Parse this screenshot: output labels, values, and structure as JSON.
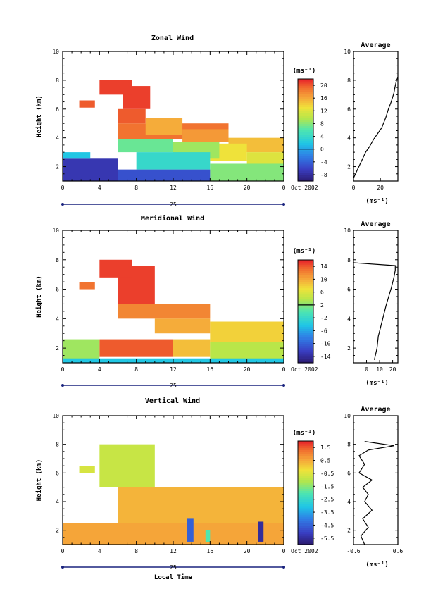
{
  "chart_data": [
    {
      "type": "heatmap",
      "title": "Zonal Wind",
      "xlabel": "",
      "ylabel": "Height (km)",
      "xlim": [
        0,
        24
      ],
      "ylim": [
        1,
        10
      ],
      "xticks": [
        "0",
        "4",
        "8",
        "12",
        "16",
        "20",
        "0"
      ],
      "yticks": [
        "2",
        "4",
        "6",
        "8",
        "10"
      ],
      "date_day": "25",
      "date_label": "Oct 2002",
      "colorbar": {
        "unit": "(ms⁻¹)",
        "ticks": [
          "-8",
          "-4",
          "0",
          "4",
          "8",
          "12",
          "16",
          "20"
        ],
        "min": -10,
        "max": 22,
        "contour_at": 0
      },
      "field": {
        "blocks": [
          {
            "x": [
              6,
              18
            ],
            "y": [
              3.9,
              5.0
            ],
            "value": 19
          },
          {
            "x": [
              6,
              9
            ],
            "y": [
              5.0,
              6.0
            ],
            "value": 20
          },
          {
            "x": [
              6.5,
              9.5
            ],
            "y": [
              6.0,
              7.6
            ],
            "value": 21
          },
          {
            "x": [
              1.8,
              3.5
            ],
            "y": [
              6.1,
              6.6
            ],
            "value": 20
          },
          {
            "x": [
              4,
              7.5
            ],
            "y": [
              7.0,
              8.0
            ],
            "value": 21
          },
          {
            "x": [
              9,
              13
            ],
            "y": [
              4.2,
              5.4
            ],
            "value": 16
          },
          {
            "x": [
              13,
              18
            ],
            "y": [
              3.7,
              4.6
            ],
            "value": 17
          },
          {
            "x": [
              18,
              24
            ],
            "y": [
              3.0,
              4.0
            ],
            "value": 15
          },
          {
            "x": [
              20,
              24
            ],
            "y": [
              2.0,
              3.0
            ],
            "value": 12
          },
          {
            "x": [
              16,
              20
            ],
            "y": [
              2.4,
              3.6
            ],
            "value": 13
          },
          {
            "x": [
              6,
              12
            ],
            "y": [
              3.0,
              3.9
            ],
            "value": 7
          },
          {
            "x": [
              12,
              17
            ],
            "y": [
              2.6,
              3.7
            ],
            "value": 9
          },
          {
            "x": [
              8,
              16
            ],
            "y": [
              1.8,
              3.0
            ],
            "value": 4
          },
          {
            "x": [
              16,
              24
            ],
            "y": [
              1.0,
              2.2
            ],
            "value": 8
          },
          {
            "x": [
              6,
              16
            ],
            "y": [
              1.0,
              1.8
            ],
            "value": -5
          },
          {
            "x": [
              0,
              6
            ],
            "y": [
              1.0,
              2.6
            ],
            "value": -7
          },
          {
            "x": [
              0,
              3
            ],
            "y": [
              2.6,
              3.0
            ],
            "value": 2
          }
        ]
      },
      "average_profile": {
        "title": "Average",
        "xlabel": "(ms⁻¹)",
        "xlim": [
          0,
          33
        ],
        "xticks": [
          "0",
          "20"
        ],
        "yticks": [
          "2",
          "4",
          "6",
          "8",
          "10"
        ],
        "ylim": [
          1,
          10
        ],
        "points": [
          [
            0,
            1.2
          ],
          [
            3,
            1.8
          ],
          [
            6,
            2.4
          ],
          [
            9,
            3.0
          ],
          [
            12,
            3.4
          ],
          [
            15,
            3.9
          ],
          [
            18,
            4.3
          ],
          [
            21,
            4.7
          ],
          [
            24,
            5.4
          ],
          [
            26,
            6.0
          ],
          [
            28,
            6.5
          ],
          [
            30,
            7.1
          ],
          [
            31,
            7.6
          ],
          [
            32,
            8.0
          ],
          [
            33,
            8.2
          ]
        ]
      }
    },
    {
      "type": "heatmap",
      "title": "Meridional Wind",
      "xlabel": "",
      "ylabel": "Height (km)",
      "xlim": [
        0,
        24
      ],
      "ylim": [
        1,
        10
      ],
      "xticks": [
        "0",
        "4",
        "8",
        "12",
        "16",
        "20",
        "0"
      ],
      "yticks": [
        "2",
        "4",
        "6",
        "8",
        "10"
      ],
      "date_day": "25",
      "date_label": "Oct 2002",
      "colorbar": {
        "unit": "(ms⁻¹)",
        "ticks": [
          "-14",
          "-10",
          "-6",
          "-2",
          "2",
          "6",
          "10",
          "14"
        ],
        "min": -16,
        "max": 16,
        "contour_at": 2
      },
      "field": {
        "blocks": [
          {
            "x": [
              6,
              10
            ],
            "y": [
              5.0,
              7.6
            ],
            "value": 15
          },
          {
            "x": [
              4,
              7.5
            ],
            "y": [
              6.8,
              8.0
            ],
            "value": 15
          },
          {
            "x": [
              1.8,
              3.5
            ],
            "y": [
              6.0,
              6.5
            ],
            "value": 13
          },
          {
            "x": [
              6,
              16
            ],
            "y": [
              4.0,
              5.0
            ],
            "value": 12
          },
          {
            "x": [
              10,
              16
            ],
            "y": [
              3.0,
              4.0
            ],
            "value": 10
          },
          {
            "x": [
              16,
              24
            ],
            "y": [
              2.4,
              3.8
            ],
            "value": 8
          },
          {
            "x": [
              4,
              12
            ],
            "y": [
              1.4,
              2.6
            ],
            "value": 14
          },
          {
            "x": [
              12,
              16
            ],
            "y": [
              1.4,
              2.6
            ],
            "value": 9
          },
          {
            "x": [
              16,
              24
            ],
            "y": [
              1.0,
              2.4
            ],
            "value": 4
          },
          {
            "x": [
              0,
              4
            ],
            "y": [
              1.0,
              2.6
            ],
            "value": 3
          },
          {
            "x": [
              0,
              24
            ],
            "y": [
              0.9,
              1.3
            ],
            "value": -4
          }
        ]
      },
      "average_profile": {
        "title": "Average",
        "xlabel": "(ms⁻¹)",
        "xlim": [
          -10,
          24
        ],
        "xticks": [
          "0",
          "10",
          "20"
        ],
        "yticks": [
          "2",
          "4",
          "6",
          "8",
          "10"
        ],
        "ylim": [
          1,
          10
        ],
        "points": [
          [
            6,
            1.2
          ],
          [
            8,
            2.0
          ],
          [
            9,
            2.8
          ],
          [
            11,
            3.5
          ],
          [
            13,
            4.2
          ],
          [
            15,
            4.9
          ],
          [
            17,
            5.5
          ],
          [
            19,
            6.1
          ],
          [
            21,
            6.8
          ],
          [
            22,
            7.3
          ],
          [
            22,
            7.6
          ],
          [
            -10,
            7.8
          ]
        ]
      }
    },
    {
      "type": "heatmap",
      "title": "Vertical Wind",
      "xlabel": "Local Time",
      "ylabel": "Height (km)",
      "xlim": [
        0,
        24
      ],
      "ylim": [
        1,
        10
      ],
      "xticks": [
        "0",
        "4",
        "8",
        "12",
        "16",
        "20",
        "0"
      ],
      "yticks": [
        "2",
        "4",
        "6",
        "8",
        "10"
      ],
      "date_day": "25",
      "date_label": "Oct 2002",
      "colorbar": {
        "unit": "(ms⁻¹)",
        "ticks": [
          "-5.5",
          "-4.5",
          "-3.5",
          "-2.5",
          "-1.5",
          "-0.5",
          "0.5",
          "1.5"
        ],
        "min": -6,
        "max": 2,
        "contour_at": null
      },
      "field": {
        "blocks": [
          {
            "x": [
              4,
              10
            ],
            "y": [
              5.0,
              8.0
            ],
            "value": -0.8
          },
          {
            "x": [
              1.8,
              3.5
            ],
            "y": [
              6.0,
              6.5
            ],
            "value": -0.6
          },
          {
            "x": [
              6,
              24
            ],
            "y": [
              2.5,
              5.0
            ],
            "value": 0.4
          },
          {
            "x": [
              0,
              24
            ],
            "y": [
              1.0,
              2.5
            ],
            "value": 0.6
          },
          {
            "x": [
              13.5,
              14.2
            ],
            "y": [
              1.2,
              2.8
            ],
            "value": -4.5
          },
          {
            "x": [
              21.2,
              21.8
            ],
            "y": [
              1.2,
              2.6
            ],
            "value": -5.5
          },
          {
            "x": [
              15.5,
              16
            ],
            "y": [
              1.2,
              2.0
            ],
            "value": -2.0
          }
        ]
      },
      "average_profile": {
        "title": "Average",
        "xlabel": "(ms⁻¹)",
        "xlim": [
          -0.6,
          0.6
        ],
        "xticks": [
          "-0.6",
          "0.6"
        ],
        "yticks": [
          "2",
          "4",
          "6",
          "8",
          "10"
        ],
        "ylim": [
          1,
          10
        ],
        "points": [
          [
            -0.3,
            1.0
          ],
          [
            -0.4,
            1.6
          ],
          [
            -0.2,
            2.2
          ],
          [
            -0.35,
            2.8
          ],
          [
            -0.1,
            3.4
          ],
          [
            -0.3,
            4.0
          ],
          [
            -0.2,
            4.5
          ],
          [
            -0.35,
            5.0
          ],
          [
            -0.1,
            5.5
          ],
          [
            -0.45,
            6.0
          ],
          [
            -0.3,
            6.6
          ],
          [
            -0.45,
            7.2
          ],
          [
            -0.2,
            7.6
          ],
          [
            0.5,
            7.9
          ],
          [
            -0.3,
            8.2
          ]
        ]
      }
    }
  ]
}
